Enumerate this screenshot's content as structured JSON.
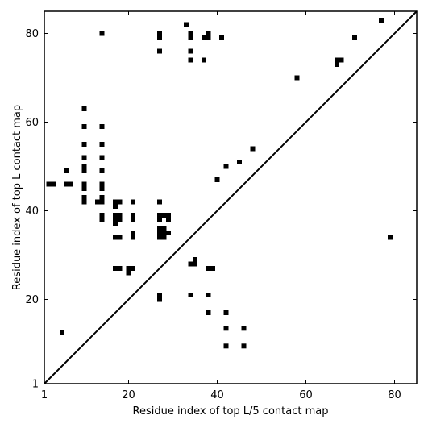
{
  "chart_data": {
    "type": "scatter",
    "title": "",
    "xlabel": "Residue index of top L/5 contact map",
    "ylabel": "Residue index of top L contact map",
    "xlim": [
      1,
      85
    ],
    "ylim": [
      1,
      85
    ],
    "xticks": [
      1,
      20,
      40,
      60,
      80
    ],
    "yticks": [
      1,
      20,
      40,
      60,
      80
    ],
    "xtick_labels": [
      "1",
      "20",
      "40",
      "60",
      "80"
    ],
    "ytick_labels": [
      "1",
      "20",
      "40",
      "60",
      "80"
    ],
    "diagonal_line": {
      "from": [
        1,
        1
      ],
      "to": [
        85,
        85
      ]
    },
    "grid": false,
    "marker_color": "#000000",
    "series": [
      {
        "marker": "square",
        "points": [
          [
            2,
            46
          ],
          [
            3,
            46
          ],
          [
            5,
            12.5
          ],
          [
            6,
            49
          ],
          [
            6,
            46
          ],
          [
            7,
            46
          ],
          [
            10,
            63
          ],
          [
            10,
            59
          ],
          [
            10,
            55
          ],
          [
            10,
            52
          ],
          [
            10,
            50
          ],
          [
            10,
            49
          ],
          [
            10,
            46
          ],
          [
            10,
            45
          ],
          [
            10,
            43
          ],
          [
            10,
            42
          ],
          [
            13,
            42
          ],
          [
            14,
            80
          ],
          [
            14,
            59
          ],
          [
            14,
            55
          ],
          [
            14,
            52
          ],
          [
            14,
            49
          ],
          [
            14,
            46
          ],
          [
            14,
            45
          ],
          [
            14,
            43
          ],
          [
            14,
            42
          ],
          [
            14,
            39
          ],
          [
            14,
            38
          ],
          [
            17,
            42
          ],
          [
            18,
            42
          ],
          [
            17,
            41
          ],
          [
            17,
            39
          ],
          [
            18,
            39
          ],
          [
            17,
            38
          ],
          [
            18,
            38
          ],
          [
            17,
            37
          ],
          [
            17,
            34
          ],
          [
            18,
            34
          ],
          [
            17,
            27
          ],
          [
            18,
            27
          ],
          [
            20,
            27
          ],
          [
            20,
            26
          ],
          [
            21,
            27
          ],
          [
            21,
            42
          ],
          [
            21,
            39
          ],
          [
            21,
            38
          ],
          [
            21,
            35
          ],
          [
            21,
            34
          ],
          [
            27,
            80
          ],
          [
            27,
            79
          ],
          [
            27,
            76
          ],
          [
            27,
            42
          ],
          [
            27,
            39
          ],
          [
            28,
            39
          ],
          [
            29,
            39
          ],
          [
            27,
            38
          ],
          [
            29,
            38
          ],
          [
            27,
            36
          ],
          [
            28,
            36
          ],
          [
            27,
            35
          ],
          [
            28,
            35
          ],
          [
            29,
            35
          ],
          [
            27,
            34
          ],
          [
            28,
            34
          ],
          [
            27,
            21
          ],
          [
            27,
            20
          ],
          [
            33,
            82
          ],
          [
            34,
            80
          ],
          [
            34,
            79
          ],
          [
            34,
            76
          ],
          [
            34,
            74
          ],
          [
            34,
            28
          ],
          [
            35,
            28
          ],
          [
            35,
            29
          ],
          [
            34,
            21
          ],
          [
            37,
            79
          ],
          [
            38,
            80
          ],
          [
            38,
            79
          ],
          [
            37,
            74
          ],
          [
            38,
            27
          ],
          [
            39,
            27
          ],
          [
            38,
            21
          ],
          [
            38,
            17
          ],
          [
            40,
            47
          ],
          [
            41,
            79
          ],
          [
            42,
            50
          ],
          [
            42,
            17
          ],
          [
            42,
            13.5
          ],
          [
            42,
            9.5
          ],
          [
            45,
            51
          ],
          [
            46,
            13.5
          ],
          [
            46,
            9.5
          ],
          [
            48,
            54
          ],
          [
            58,
            70
          ],
          [
            67,
            74
          ],
          [
            68,
            74
          ],
          [
            67,
            73
          ],
          [
            71,
            79
          ],
          [
            77,
            83
          ],
          [
            79,
            34
          ]
        ]
      }
    ]
  }
}
